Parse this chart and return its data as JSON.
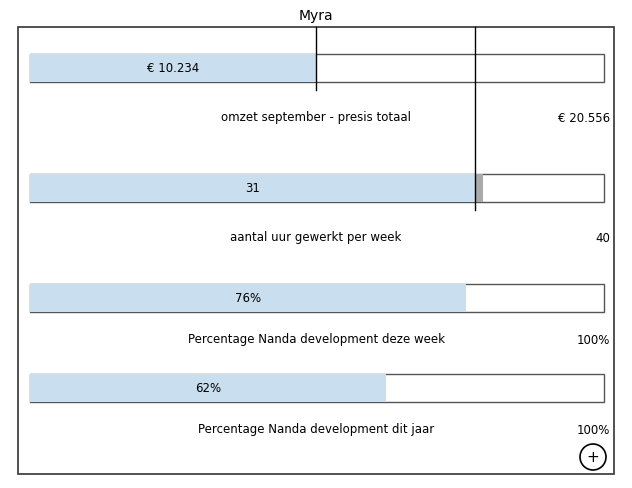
{
  "title": "Myra",
  "background_color": "#ffffff",
  "border_color": "#333333",
  "bar_fill_color": "#c9dff0",
  "bar_edge_color": "#555555",
  "bars": [
    {
      "value": 10234,
      "max_value": 20556,
      "label_inside": "€ 10.234",
      "label_below": "omzet september - presis totaal",
      "label_right": "€ 20.556",
      "show_tick": true,
      "gray_bar": false
    },
    {
      "value": 31,
      "max_value": 40,
      "label_inside": "31",
      "label_below": "aantal uur gewerkt per week",
      "label_right": "40",
      "show_tick": true,
      "gray_bar": true
    },
    {
      "value": 76,
      "max_value": 100,
      "label_inside": "76%",
      "label_below": "Percentage Nanda development deze week",
      "label_right": "100%",
      "show_tick": false,
      "gray_bar": false
    },
    {
      "value": 62,
      "max_value": 100,
      "label_inside": "62%",
      "label_below": "Percentage Nanda development dit jaar",
      "label_right": "100%",
      "show_tick": false,
      "gray_bar": false
    }
  ],
  "font_size_title": 10,
  "font_size_label": 8.5,
  "font_size_bar": 8.5
}
